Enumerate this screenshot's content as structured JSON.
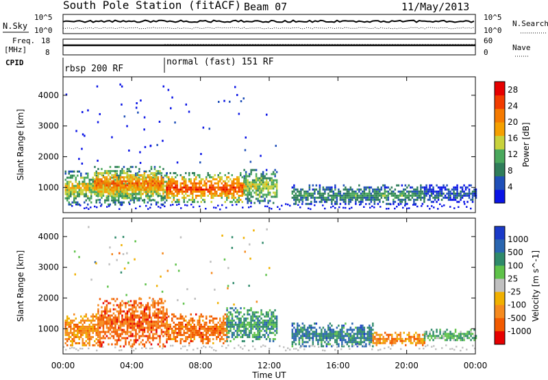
{
  "header": {
    "title": "South Pole Station (fitACF)",
    "beam": "Beam 07",
    "date": "11/May/2013"
  },
  "panels": {
    "nsky_label": "N.Sky",
    "nsearch_label": "N.Search",
    "nsky_ticks": [
      "10^5",
      "10^0"
    ],
    "nsearch_ticks": [
      "10^5",
      "10^0"
    ],
    "freq_label_1": "Freq.",
    "freq_label_2": "[MHz]",
    "freq_ticks": [
      "18",
      "8"
    ],
    "nave_label": "Nave",
    "nave_ticks": [
      "60",
      "0"
    ],
    "cpid_label": "CPID",
    "cpid_modes": [
      "rbsp 200 RF",
      "normal (fast) 151 RF"
    ]
  },
  "colors": {
    "power_scale": [
      "#0a14e6",
      "#1f4fb8",
      "#2f7d5a",
      "#4aa85c",
      "#c8d23c",
      "#f5a000",
      "#f57a00",
      "#f23c00",
      "#e60000"
    ],
    "velocity_scale": [
      "#1a3ac8",
      "#2a66b0",
      "#2f8a6a",
      "#5fc24a",
      "#c0c0c0",
      "#f0b000",
      "#f58a1e",
      "#f25a00",
      "#e60000"
    ]
  },
  "chart_data": [
    {
      "type": "heatmap",
      "name": "power",
      "ylabel": "Slant Range [km]",
      "xlabel": "Time UT",
      "x_ticks": [
        "00:00",
        "04:00",
        "08:00",
        "12:00",
        "16:00",
        "20:00",
        "00:00"
      ],
      "x_range_hours": [
        0,
        24
      ],
      "y_ticks": [
        1000,
        2000,
        3000,
        4000
      ],
      "ylim": [
        180,
        4600
      ],
      "colorbar": {
        "label": "Power [dB]",
        "ticks": [
          4,
          8,
          12,
          16,
          20,
          24,
          28
        ],
        "range": [
          0,
          30
        ]
      },
      "echo_regions": [
        {
          "t0": 0.1,
          "t1": 6.0,
          "r0": 450,
          "r1": 1550,
          "level": 0.55
        },
        {
          "t0": 1.8,
          "t1": 5.8,
          "r0": 600,
          "r1": 1700,
          "level": 0.75
        },
        {
          "t0": 6.0,
          "t1": 10.5,
          "r0": 500,
          "r1": 1500,
          "level": 0.85
        },
        {
          "t0": 10.5,
          "t1": 12.4,
          "r0": 500,
          "r1": 1600,
          "level": 0.5
        },
        {
          "t0": 13.3,
          "t1": 21.0,
          "r0": 450,
          "r1": 1100,
          "level": 0.35
        },
        {
          "t0": 21.0,
          "t1": 24.0,
          "r0": 500,
          "r1": 1100,
          "level": 0.2
        }
      ]
    },
    {
      "type": "heatmap",
      "name": "velocity",
      "ylabel": "Slant Range [km]",
      "xlabel": "Time UT",
      "x_ticks": [
        "00:00",
        "04:00",
        "08:00",
        "12:00",
        "16:00",
        "20:00",
        "00:00"
      ],
      "x_range_hours": [
        0,
        24
      ],
      "y_ticks": [
        1000,
        2000,
        3000,
        4000
      ],
      "ylim": [
        180,
        4600
      ],
      "colorbar": {
        "label": "Velocity [m s^-1]",
        "ticks": [
          "1000",
          "500",
          "100",
          "25",
          "-25",
          "-100",
          "-500",
          "-1000"
        ]
      },
      "echo_regions": [
        {
          "t0": 0.1,
          "t1": 2.0,
          "r0": 450,
          "r1": 1500,
          "level": -0.4
        },
        {
          "t0": 2.0,
          "t1": 6.0,
          "r0": 450,
          "r1": 2000,
          "level": -0.6
        },
        {
          "t0": 6.0,
          "t1": 9.5,
          "r0": 500,
          "r1": 1500,
          "level": -0.55
        },
        {
          "t0": 9.5,
          "t1": 12.4,
          "r0": 600,
          "r1": 1700,
          "level": 0.4
        },
        {
          "t0": 13.3,
          "t1": 18.0,
          "r0": 450,
          "r1": 1200,
          "level": 0.55
        },
        {
          "t0": 18.0,
          "t1": 21.0,
          "r0": 450,
          "r1": 900,
          "level": -0.45
        },
        {
          "t0": 21.0,
          "t1": 24.0,
          "r0": 600,
          "r1": 1000,
          "level": 0.3
        }
      ]
    }
  ]
}
